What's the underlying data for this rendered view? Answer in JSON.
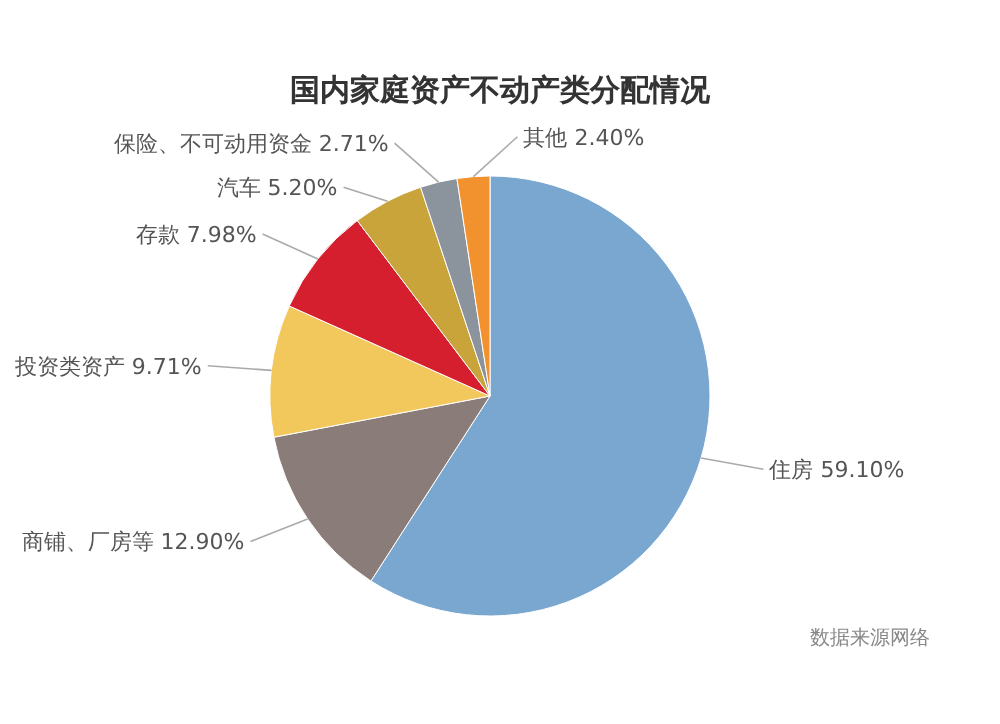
{
  "chart_data": {
    "type": "pie",
    "title": "国内家庭资产不动产类分配情况",
    "categories": [
      "住房",
      "商铺、厂房等",
      "投资类资产",
      "存款",
      "汽车",
      "保险、不可动用资金",
      "其他"
    ],
    "values": [
      59.1,
      12.9,
      9.71,
      7.98,
      5.2,
      2.71,
      2.4
    ],
    "value_labels": [
      "59.10%",
      "12.90%",
      "9.71%",
      "7.98%",
      "5.20%",
      "2.71%",
      "2.40%"
    ],
    "colors": [
      "#79a7cf",
      "#8a7c78",
      "#f2c75c",
      "#d51f2e",
      "#c9a43a",
      "#8b949c",
      "#f1922e"
    ],
    "annotations": [
      "数据来源网络"
    ]
  }
}
